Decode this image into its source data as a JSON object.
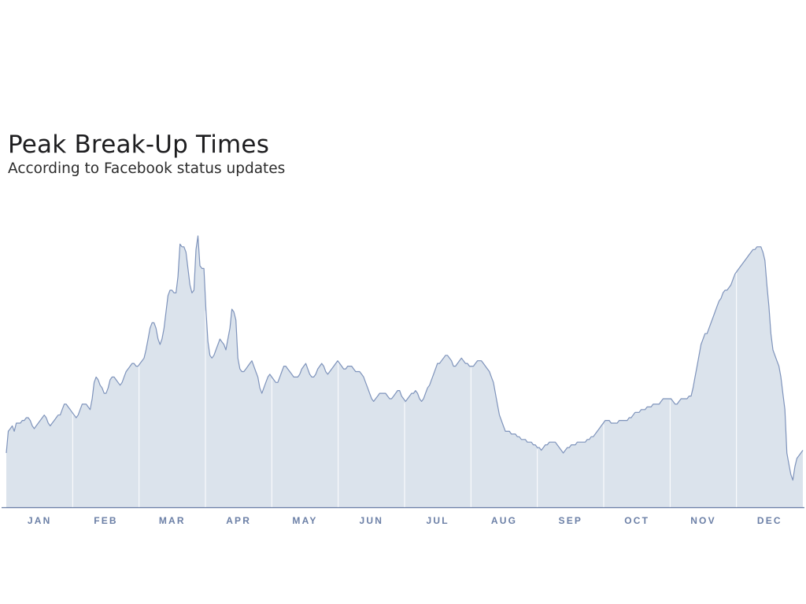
{
  "chart_data": {
    "type": "area",
    "title": "Peak Break-Up Times",
    "subtitle": "According to Facebook status updates",
    "months": [
      "JAN",
      "FEB",
      "MAR",
      "APR",
      "MAY",
      "JUN",
      "JUL",
      "AUG",
      "SEP",
      "OCT",
      "NOV",
      "DEC"
    ],
    "values": [
      20,
      28,
      29,
      30,
      28,
      31,
      31,
      31,
      32,
      32,
      33,
      33,
      32,
      30,
      29,
      30,
      31,
      32,
      33,
      34,
      33,
      31,
      30,
      31,
      32,
      33,
      34,
      34,
      36,
      38,
      38,
      37,
      36,
      35,
      34,
      33,
      34,
      36,
      38,
      38,
      38,
      37,
      36,
      40,
      46,
      48,
      47,
      45,
      44,
      42,
      42,
      44,
      47,
      48,
      48,
      47,
      46,
      45,
      46,
      48,
      50,
      51,
      52,
      53,
      53,
      52,
      52,
      53,
      54,
      55,
      58,
      62,
      66,
      68,
      68,
      66,
      62,
      60,
      62,
      66,
      72,
      78,
      80,
      80,
      79,
      79,
      85,
      97,
      96,
      96,
      94,
      88,
      82,
      79,
      80,
      95,
      100,
      89,
      88,
      88,
      73,
      61,
      56,
      55,
      56,
      58,
      60,
      62,
      61,
      60,
      58,
      62,
      66,
      73,
      72,
      69,
      55,
      51,
      50,
      50,
      51,
      52,
      53,
      54,
      52,
      50,
      48,
      44,
      42,
      44,
      46,
      48,
      49,
      48,
      47,
      46,
      46,
      48,
      50,
      52,
      52,
      51,
      50,
      49,
      48,
      48,
      48,
      49,
      51,
      52,
      53,
      51,
      49,
      48,
      48,
      49,
      51,
      52,
      53,
      52,
      50,
      49,
      50,
      51,
      52,
      53,
      54,
      53,
      52,
      51,
      51,
      52,
      52,
      52,
      51,
      50,
      50,
      50,
      49,
      48,
      46,
      44,
      42,
      40,
      39,
      40,
      41,
      42,
      42,
      42,
      42,
      41,
      40,
      40,
      41,
      42,
      43,
      43,
      41,
      40,
      39,
      40,
      41,
      42,
      42,
      43,
      42,
      40,
      39,
      40,
      42,
      44,
      45,
      47,
      49,
      51,
      53,
      53,
      54,
      55,
      56,
      56,
      55,
      54,
      52,
      52,
      53,
      54,
      55,
      54,
      53,
      53,
      52,
      52,
      52,
      53,
      54,
      54,
      54,
      53,
      52,
      51,
      50,
      48,
      46,
      42,
      38,
      34,
      32,
      30,
      28,
      28,
      28,
      27,
      27,
      27,
      26,
      26,
      25,
      25,
      25,
      24,
      24,
      24,
      23,
      23,
      22,
      22,
      21,
      22,
      23,
      23,
      24,
      24,
      24,
      24,
      23,
      22,
      21,
      20,
      21,
      22,
      22,
      23,
      23,
      23,
      24,
      24,
      24,
      24,
      24,
      25,
      25,
      26,
      26,
      27,
      28,
      29,
      30,
      31,
      32,
      32,
      32,
      31,
      31,
      31,
      31,
      32,
      32,
      32,
      32,
      32,
      33,
      33,
      34,
      35,
      35,
      35,
      36,
      36,
      36,
      37,
      37,
      37,
      38,
      38,
      38,
      38,
      39,
      40,
      40,
      40,
      40,
      40,
      39,
      38,
      38,
      39,
      40,
      40,
      40,
      40,
      41,
      41,
      44,
      48,
      52,
      56,
      60,
      62,
      64,
      64,
      66,
      68,
      70,
      72,
      74,
      76,
      77,
      79,
      80,
      80,
      81,
      82,
      84,
      86,
      87,
      88,
      89,
      90,
      91,
      92,
      93,
      94,
      95,
      95,
      96,
      96,
      96,
      94,
      91,
      82,
      74,
      64,
      58,
      56,
      54,
      52,
      48,
      42,
      36,
      20,
      16,
      12,
      10,
      15,
      18,
      19,
      20,
      21
    ],
    "ylim": [
      0,
      100
    ]
  }
}
